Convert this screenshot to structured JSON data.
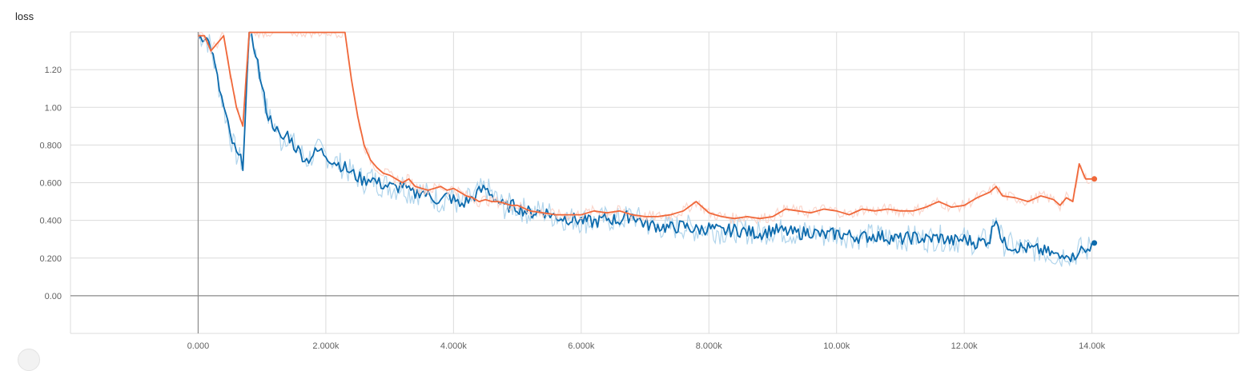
{
  "chart_data": {
    "type": "line",
    "title": "loss",
    "xlabel": "",
    "ylabel": "",
    "xlim": [
      -2000,
      16300
    ],
    "ylim": [
      -0.2,
      1.4
    ],
    "grid": true,
    "legend": "none",
    "x_ticks": [
      0,
      2000,
      4000,
      6000,
      8000,
      10000,
      12000,
      14000
    ],
    "x_tick_labels": [
      "0.000",
      "2.000k",
      "4.000k",
      "6.000k",
      "8.000k",
      "10.00k",
      "12.00k",
      "14.00k"
    ],
    "y_ticks": [
      0,
      0.2,
      0.4,
      0.6,
      0.8,
      1.0,
      1.2
    ],
    "y_tick_labels": [
      "0.00",
      "0.200",
      "0.400",
      "0.600",
      "0.800",
      "1.00",
      "1.20"
    ],
    "series": [
      {
        "color": "#0d6bad",
        "raw_color": "#a9d0ea",
        "x": [
          0,
          100,
          200,
          300,
          400,
          500,
          600,
          700,
          800,
          900,
          1000,
          1100,
          1200,
          1300,
          1400,
          1500,
          1600,
          1700,
          1800,
          1900,
          2000,
          2100,
          2200,
          2300,
          2400,
          2500,
          2600,
          2700,
          2800,
          2900,
          3000,
          3100,
          3200,
          3300,
          3400,
          3500,
          3600,
          3700,
          3800,
          3900,
          4000,
          4100,
          4200,
          4300,
          4400,
          4500,
          4600,
          4700,
          4800,
          4900,
          5000,
          5200,
          5400,
          5600,
          5800,
          6000,
          6200,
          6400,
          6600,
          6800,
          7000,
          7200,
          7400,
          7600,
          7800,
          8000,
          8200,
          8400,
          8600,
          8800,
          9000,
          9200,
          9400,
          9600,
          9800,
          10000,
          10200,
          10400,
          10600,
          10800,
          11000,
          11200,
          11400,
          11600,
          11800,
          12000,
          12200,
          12400,
          12500,
          12600,
          12800,
          13000,
          13200,
          13400,
          13500,
          13600,
          13700,
          13800,
          13900,
          14000
        ],
        "y": [
          1.38,
          1.38,
          1.32,
          1.15,
          1.0,
          0.85,
          0.75,
          0.7,
          1.4,
          1.3,
          1.1,
          0.95,
          0.9,
          0.82,
          0.86,
          0.8,
          0.76,
          0.72,
          0.75,
          0.77,
          0.75,
          0.72,
          0.7,
          0.68,
          0.65,
          0.63,
          0.61,
          0.63,
          0.6,
          0.59,
          0.58,
          0.57,
          0.59,
          0.55,
          0.54,
          0.56,
          0.53,
          0.52,
          0.5,
          0.53,
          0.51,
          0.48,
          0.5,
          0.52,
          0.55,
          0.57,
          0.54,
          0.5,
          0.47,
          0.48,
          0.47,
          0.44,
          0.45,
          0.42,
          0.41,
          0.4,
          0.39,
          0.41,
          0.4,
          0.43,
          0.38,
          0.37,
          0.36,
          0.37,
          0.35,
          0.36,
          0.34,
          0.35,
          0.34,
          0.33,
          0.35,
          0.34,
          0.33,
          0.34,
          0.32,
          0.33,
          0.32,
          0.31,
          0.32,
          0.31,
          0.3,
          0.31,
          0.3,
          0.31,
          0.29,
          0.3,
          0.28,
          0.3,
          0.43,
          0.28,
          0.26,
          0.25,
          0.24,
          0.22,
          0.2,
          0.24,
          0.2,
          0.25,
          0.23,
          0.28
        ],
        "last_value": 0.28
      },
      {
        "color": "#f0683a",
        "raw_color": "#fbd2c6",
        "x": [
          0,
          100,
          200,
          300,
          400,
          500,
          600,
          700,
          800,
          900,
          1000,
          1100,
          1200,
          1300,
          1400,
          1500,
          1600,
          1700,
          1800,
          1900,
          2000,
          2100,
          2200,
          2300,
          2400,
          2500,
          2600,
          2700,
          2800,
          2900,
          3000,
          3100,
          3200,
          3300,
          3400,
          3500,
          3600,
          3700,
          3800,
          3900,
          4000,
          4100,
          4200,
          4300,
          4400,
          4500,
          4600,
          4700,
          4800,
          4900,
          5000,
          5200,
          5400,
          5600,
          5800,
          6000,
          6200,
          6400,
          6600,
          6800,
          7000,
          7200,
          7400,
          7600,
          7800,
          8000,
          8200,
          8400,
          8600,
          8800,
          9000,
          9200,
          9400,
          9600,
          9800,
          10000,
          10200,
          10400,
          10600,
          10800,
          11000,
          11200,
          11400,
          11600,
          11800,
          12000,
          12200,
          12400,
          12500,
          12600,
          12800,
          13000,
          13200,
          13400,
          13500,
          13600,
          13700,
          13800,
          13900,
          14000
        ],
        "y": [
          1.38,
          1.38,
          1.3,
          1.34,
          1.38,
          1.18,
          1.0,
          0.9,
          1.4,
          1.4,
          1.4,
          1.4,
          1.4,
          1.4,
          1.4,
          1.4,
          1.4,
          1.4,
          1.4,
          1.4,
          1.4,
          1.4,
          1.4,
          1.4,
          1.15,
          0.95,
          0.8,
          0.72,
          0.68,
          0.65,
          0.64,
          0.62,
          0.6,
          0.62,
          0.58,
          0.57,
          0.56,
          0.57,
          0.58,
          0.56,
          0.57,
          0.55,
          0.53,
          0.52,
          0.5,
          0.51,
          0.5,
          0.5,
          0.49,
          0.48,
          0.48,
          0.45,
          0.44,
          0.43,
          0.43,
          0.43,
          0.45,
          0.44,
          0.45,
          0.43,
          0.42,
          0.42,
          0.43,
          0.45,
          0.5,
          0.44,
          0.42,
          0.41,
          0.42,
          0.41,
          0.42,
          0.46,
          0.45,
          0.44,
          0.46,
          0.45,
          0.43,
          0.46,
          0.45,
          0.46,
          0.45,
          0.45,
          0.47,
          0.5,
          0.47,
          0.48,
          0.52,
          0.55,
          0.58,
          0.53,
          0.52,
          0.5,
          0.53,
          0.51,
          0.48,
          0.52,
          0.5,
          0.7,
          0.62,
          0.62
        ],
        "last_value": 0.62
      }
    ]
  }
}
